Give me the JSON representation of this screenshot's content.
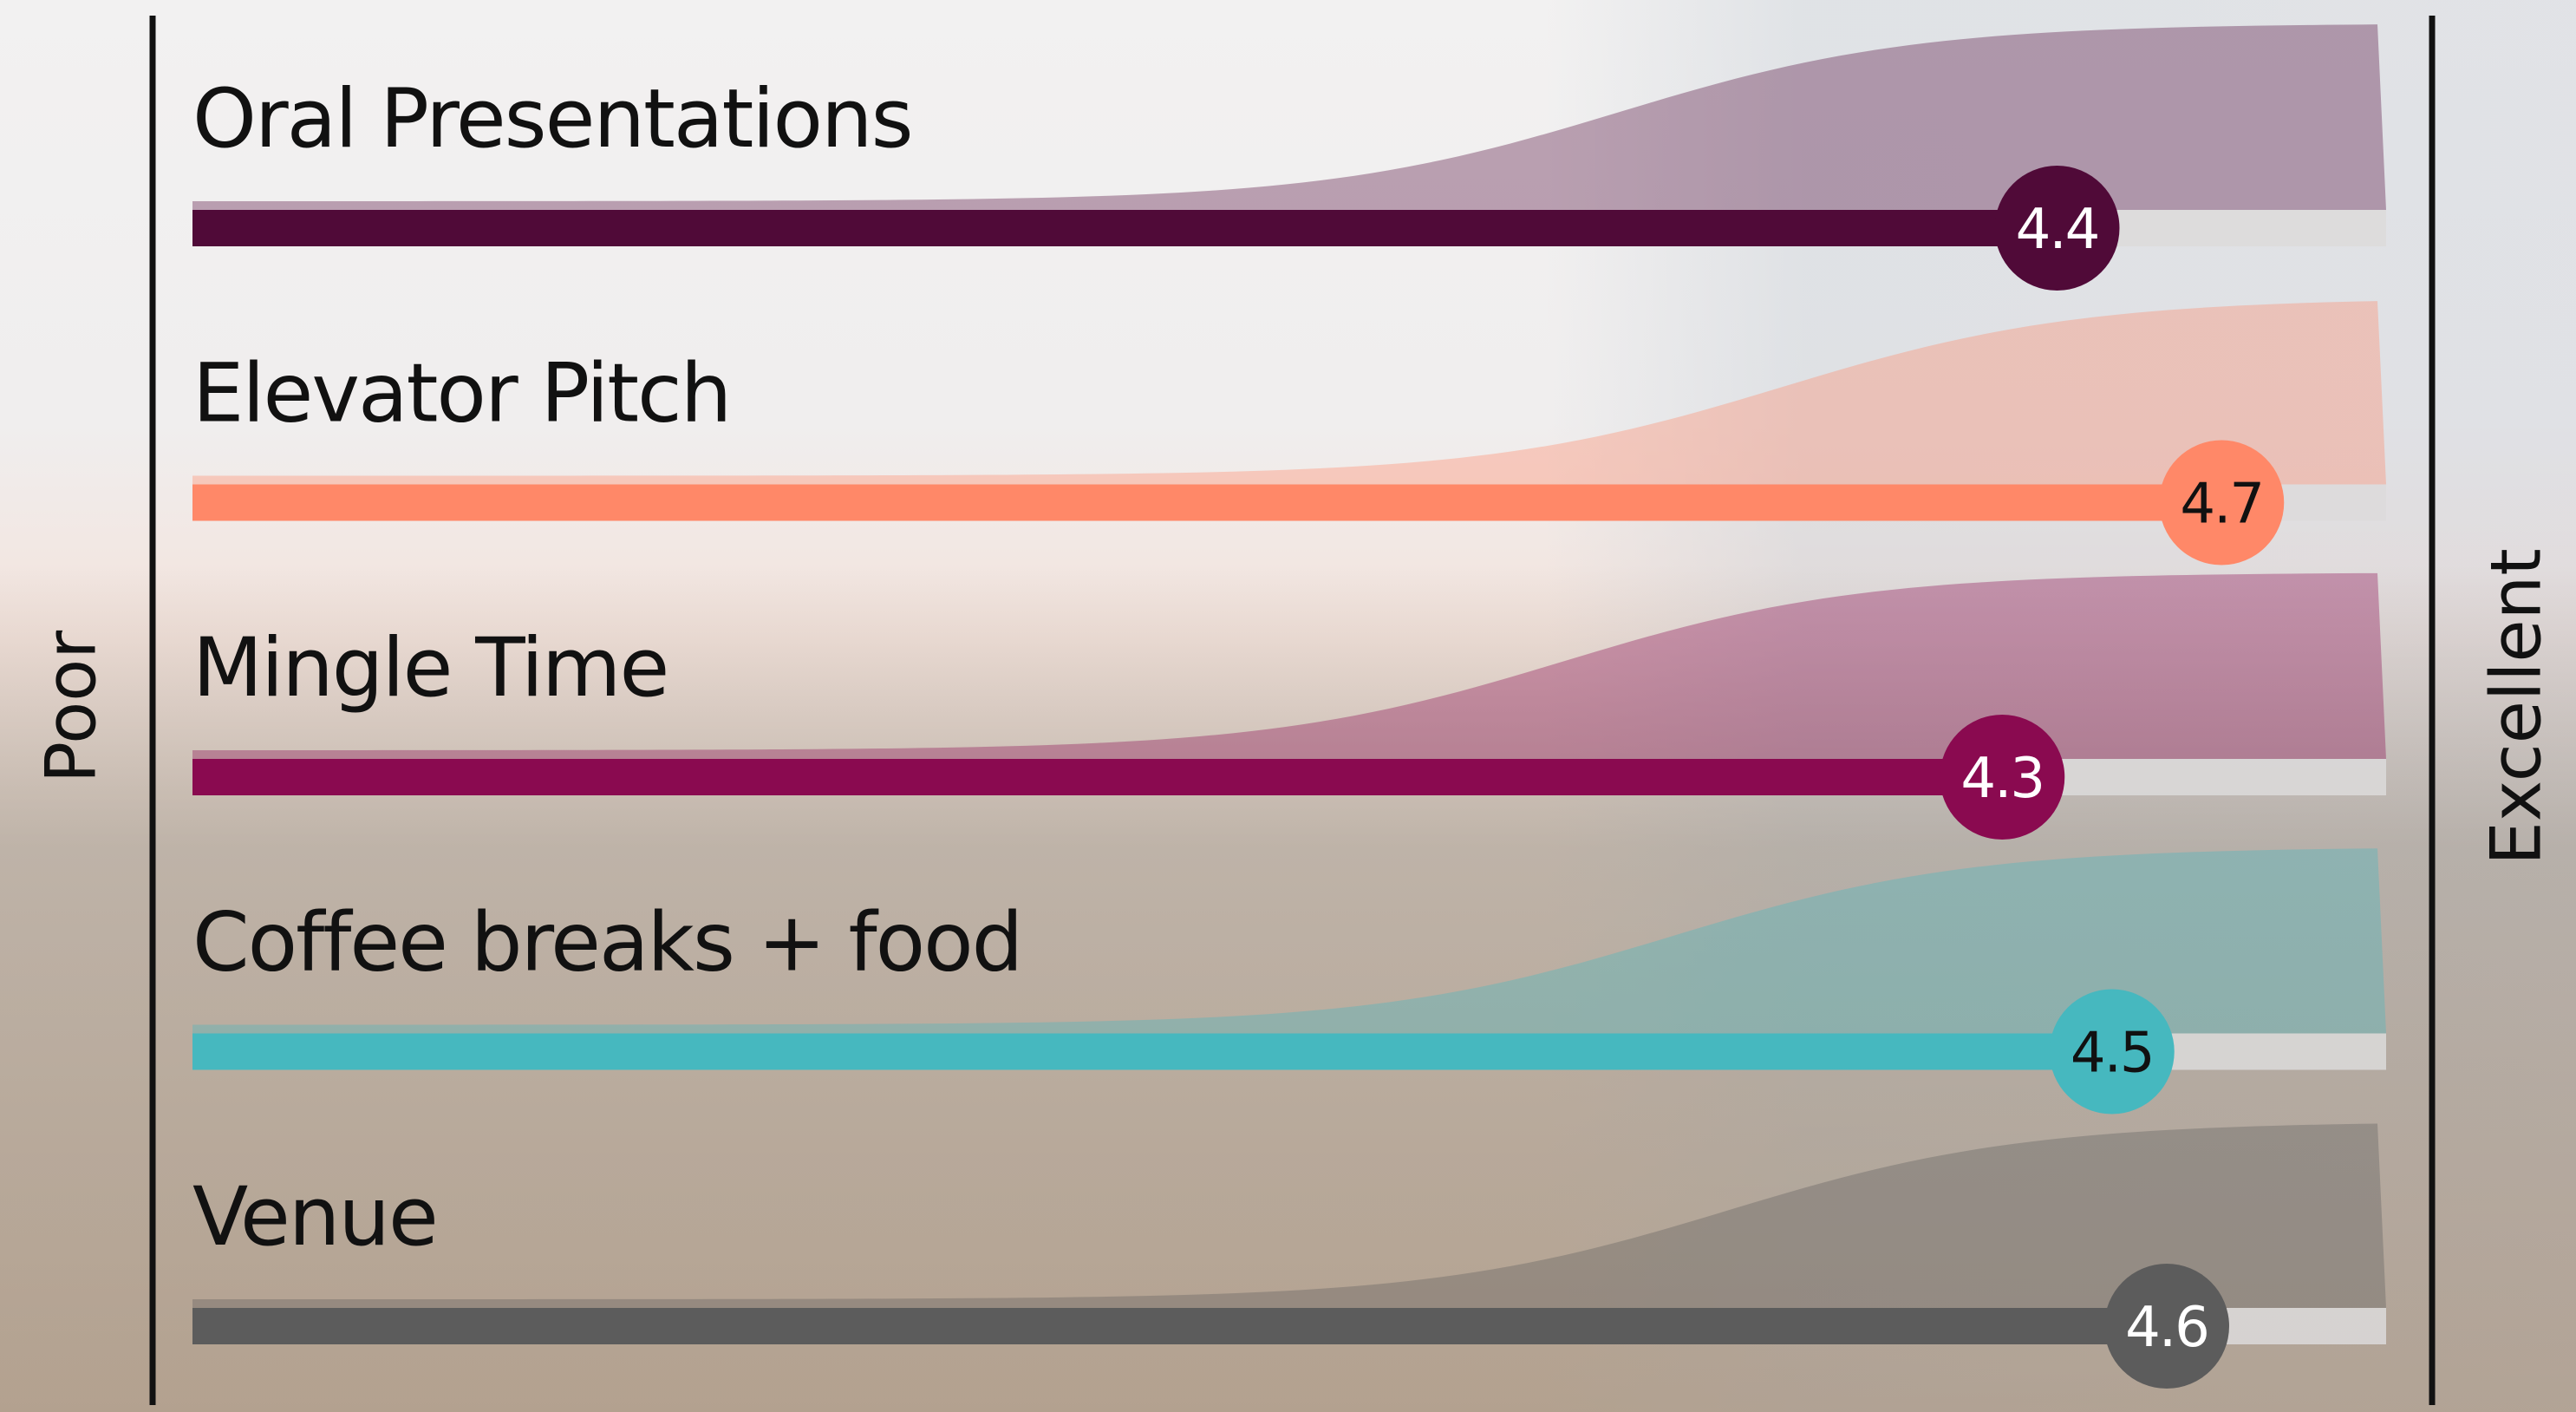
{
  "chart_data": {
    "type": "bar",
    "orientation": "horizontal",
    "categories": [
      "Oral Presentations",
      "Elevator Pitch",
      "Mingle Time",
      "Coffee breaks + food",
      "Venue"
    ],
    "values": [
      4.4,
      4.7,
      4.3,
      4.5,
      4.6
    ],
    "colors": [
      "#500a38",
      "#ff8868",
      "#8a0a50",
      "#46b8bf",
      "#5c5c5c"
    ],
    "xlim": [
      1,
      5
    ],
    "left_label": "Poor",
    "right_label": "Excellent"
  }
}
